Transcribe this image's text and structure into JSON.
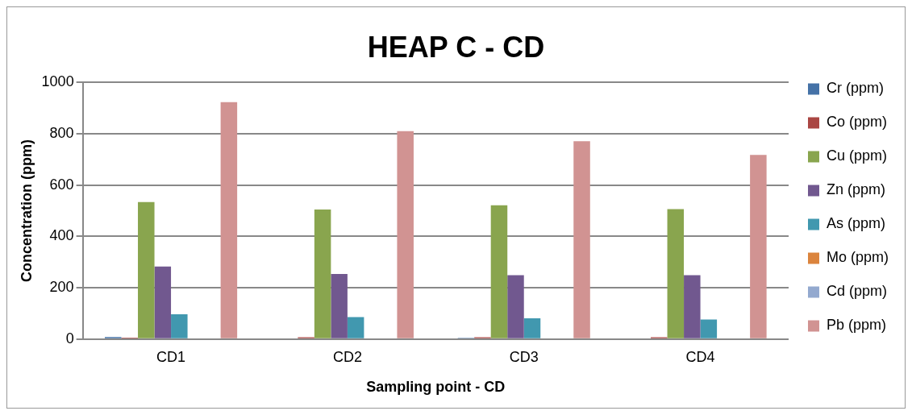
{
  "chart_data": {
    "type": "bar",
    "title": "HEAP C - CD",
    "xlabel": "Sampling point - CD",
    "ylabel": "Concentration (ppm)",
    "categories": [
      "CD1",
      "CD2",
      "CD3",
      "CD4"
    ],
    "series": [
      {
        "name": "Cr (ppm)",
        "color": "#4572a7",
        "values": [
          8,
          null,
          5,
          null
        ]
      },
      {
        "name": "Co (ppm)",
        "color": "#aa4643",
        "values": [
          6,
          7,
          7,
          7
        ]
      },
      {
        "name": "Cu (ppm)",
        "color": "#89a54e",
        "values": [
          534,
          505,
          521,
          506
        ]
      },
      {
        "name": "Zn (ppm)",
        "color": "#71588f",
        "values": [
          283,
          254,
          249,
          249
        ]
      },
      {
        "name": "As (ppm)",
        "color": "#4198af",
        "values": [
          97,
          86,
          81,
          76
        ]
      },
      {
        "name": "Mo (ppm)",
        "color": "#db843d",
        "values": [
          0,
          0,
          0,
          0
        ]
      },
      {
        "name": "Cd (ppm)",
        "color": "#93a9cf",
        "values": [
          0,
          0,
          0,
          0
        ]
      },
      {
        "name": "Pb (ppm)",
        "color": "#d19392",
        "values": [
          923,
          810,
          771,
          717
        ]
      }
    ],
    "ylim": [
      0,
      1000
    ],
    "yticks": [
      0,
      200,
      400,
      600,
      800,
      1000
    ],
    "grid": "y",
    "legend": "right"
  }
}
